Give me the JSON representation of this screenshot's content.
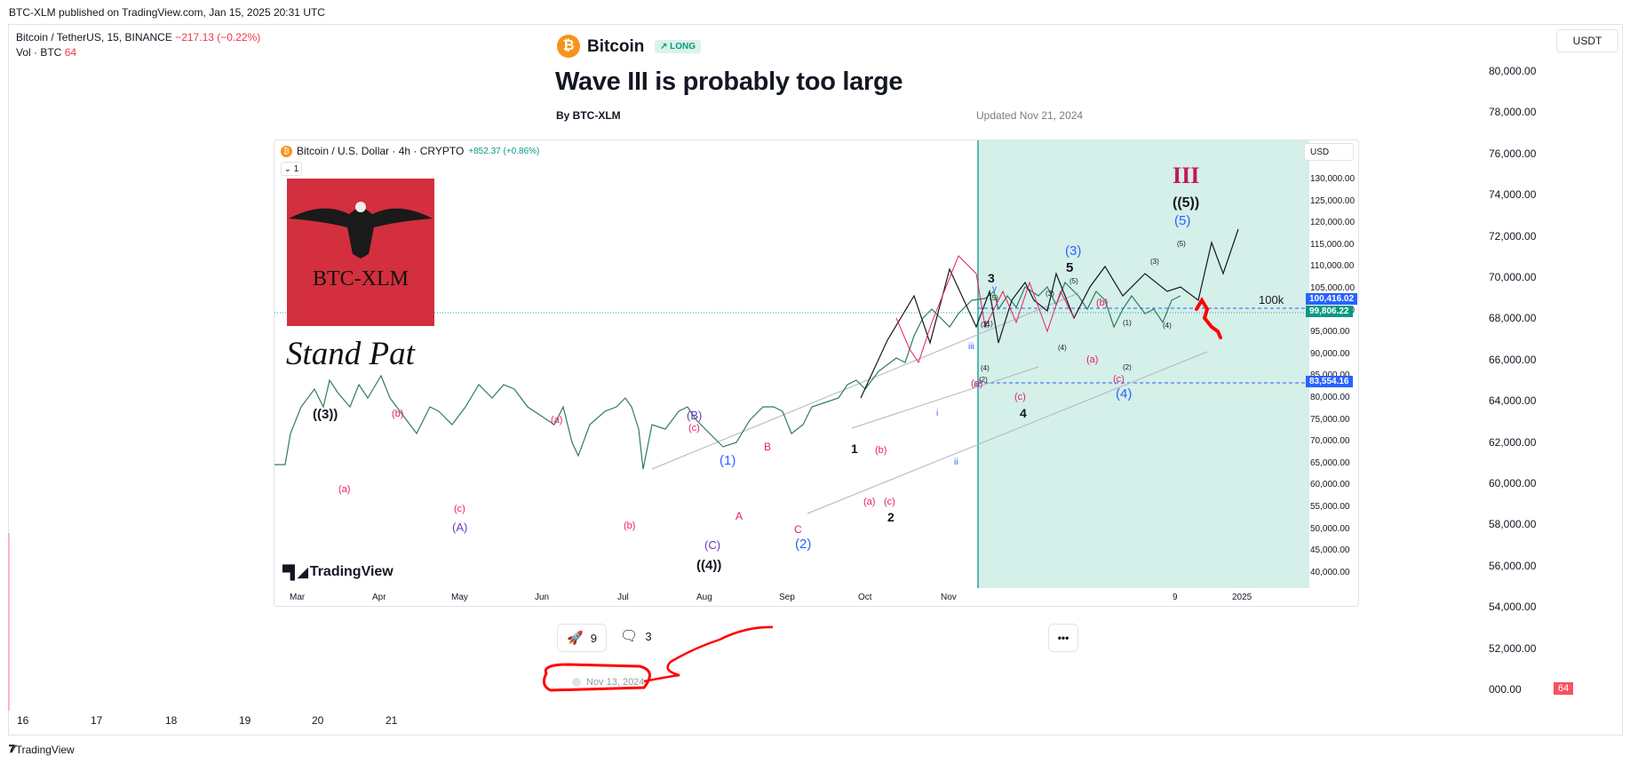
{
  "caption": "BTC-XLM published on TradingView.com, Jan 15, 2025 20:31 UTC",
  "outer_chart": {
    "symbol_line": "Bitcoin / TetherUS, 15, BINANCE",
    "change": "−217.13 (−0.22%)",
    "vol_line": "Vol · BTC",
    "vol_value": "64",
    "currency_button": "USDT",
    "price_axis": [
      "80,000.00",
      "78,000.00",
      "76,000.00",
      "74,000.00",
      "72,000.00",
      "70,000.00",
      "68,000.00",
      "66,000.00",
      "64,000.00",
      "62,000.00",
      "60,000.00",
      "58,000.00",
      "56,000.00",
      "54,000.00",
      "52,000.00",
      "000.00"
    ],
    "date_axis": [
      "16",
      "17",
      "18",
      "19",
      "20",
      "21"
    ],
    "vol_badge": "64",
    "footer_logo": "TradingView"
  },
  "idea": {
    "coin_icon": "bitcoin-icon",
    "coin_symbol": "₿",
    "coin_name": "Bitcoin",
    "badge": "↗ LONG",
    "title": "Wave III is probably too large",
    "author": "By BTC-XLM",
    "updated": "Updated Nov 21, 2024",
    "boosts": "9",
    "comments": "3",
    "published": "Nov 13, 2024"
  },
  "inner_chart": {
    "symbol_line": "Bitcoin / U.S. Dollar · 4h · CRYPTO",
    "change": "+852.37 (+0.86%)",
    "collapse_label": "1",
    "currency_button": "USD",
    "logo_text": "BTC-XLM",
    "overlay_text": "Stand Pat",
    "watermark": "TradingView",
    "price_axis": [
      "130,000.00",
      "125,000.00",
      "120,000.00",
      "115,000.00",
      "110,000.00",
      "105,000.00",
      "100,000.00",
      "95,000.00",
      "90,000.00",
      "85,000.00",
      "80,000.00",
      "75,000.00",
      "70,000.00",
      "65,000.00",
      "60,000.00",
      "55,000.00",
      "50,000.00",
      "45,000.00",
      "40,000.00"
    ],
    "price_badges": {
      "current": "100,416.02",
      "green": "99,806.22",
      "support": "83,554.16"
    },
    "month_axis": [
      "Mar",
      "Apr",
      "May",
      "Jun",
      "Jul",
      "Aug",
      "Sep",
      "Oct",
      "Nov",
      "9",
      "2025"
    ],
    "target_label": "100k",
    "wave_labels": [
      {
        "t": "((3))",
        "c": "#131722"
      },
      {
        "t": "(b)",
        "c": "#e91e63"
      },
      {
        "t": "(a)",
        "c": "#e91e63"
      },
      {
        "t": "(c)",
        "c": "#e91e63"
      },
      {
        "t": "(A)",
        "c": "#673ab7"
      },
      {
        "t": "(a)",
        "c": "#e91e63"
      },
      {
        "t": "(b)",
        "c": "#e91e63"
      },
      {
        "t": "(B)",
        "c": "#673ab7"
      },
      {
        "t": "(c)",
        "c": "#e91e63"
      },
      {
        "t": "(C)",
        "c": "#673ab7"
      },
      {
        "t": "((4))",
        "c": "#131722"
      },
      {
        "t": "(1)",
        "c": "#2962ff"
      },
      {
        "t": "A",
        "c": "#e91e63"
      },
      {
        "t": "B",
        "c": "#e91e63"
      },
      {
        "t": "C",
        "c": "#e91e63"
      },
      {
        "t": "(2)",
        "c": "#2962ff"
      },
      {
        "t": "1",
        "c": "#131722"
      },
      {
        "t": "(a)",
        "c": "#e91e63"
      },
      {
        "t": "(b)",
        "c": "#e91e63"
      },
      {
        "t": "(c)",
        "c": "#e91e63"
      },
      {
        "t": "2",
        "c": "#131722"
      },
      {
        "t": "i",
        "c": "#2962ff"
      },
      {
        "t": "ii",
        "c": "#2962ff"
      },
      {
        "t": "iii",
        "c": "#2962ff"
      },
      {
        "t": "iv",
        "c": "#2962ff"
      },
      {
        "t": "v",
        "c": "#2962ff"
      },
      {
        "t": "3",
        "c": "#131722"
      },
      {
        "t": "(5)",
        "c": "#131722"
      },
      {
        "t": "(3)",
        "c": "#131722"
      },
      {
        "t": "(4)",
        "c": "#131722"
      },
      {
        "t": "(2)",
        "c": "#131722"
      },
      {
        "t": "(1)",
        "c": "#131722"
      },
      {
        "t": "(a)",
        "c": "#e91e63"
      },
      {
        "t": "(c)",
        "c": "#e91e63"
      },
      {
        "t": "4",
        "c": "#131722"
      },
      {
        "t": "(3)",
        "c": "#2962ff"
      },
      {
        "t": "5",
        "c": "#131722"
      },
      {
        "t": "(5)",
        "c": "#131722"
      },
      {
        "t": "(3)",
        "c": "#131722"
      },
      {
        "t": "(4)",
        "c": "#131722"
      },
      {
        "t": "(b)",
        "c": "#e91e63"
      },
      {
        "t": "(a)",
        "c": "#e91e63"
      },
      {
        "t": "(c)",
        "c": "#e91e63"
      },
      {
        "t": "(4)",
        "c": "#2962ff"
      },
      {
        "t": "(2)",
        "c": "#131722"
      },
      {
        "t": "(1)",
        "c": "#131722"
      },
      {
        "t": "(4)",
        "c": "#131722"
      },
      {
        "t": "(3)",
        "c": "#131722"
      },
      {
        "t": "(5)",
        "c": "#131722"
      },
      {
        "t": "(5)",
        "c": "#2962ff"
      },
      {
        "t": "((5))",
        "c": "#131722"
      },
      {
        "t": "III",
        "c": "#c2185b"
      }
    ]
  }
}
